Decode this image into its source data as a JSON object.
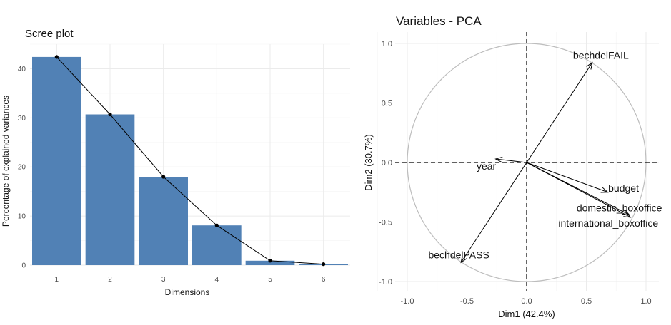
{
  "chart_data": [
    {
      "type": "bar",
      "title": "Scree plot",
      "xlabel": "Dimensions",
      "ylabel": "Percentage of explained variances",
      "categories": [
        "1",
        "2",
        "3",
        "4",
        "5",
        "6"
      ],
      "values": [
        42.4,
        30.7,
        18.0,
        8.1,
        0.9,
        0.2
      ],
      "overlay": "line-with-points",
      "ylim": [
        0,
        45
      ],
      "yticks": [
        0,
        10,
        20,
        30,
        40
      ],
      "grid": true,
      "colors": {
        "bar": "#5181b5",
        "line": "#000000"
      }
    },
    {
      "type": "scatter",
      "subtype": "pca-variable-correlation-circle",
      "title": "Variables - PCA",
      "xlabel": "Dim1 (42.4%)",
      "ylabel": "Dim2 (30.7%)",
      "xlim": [
        -1.0,
        1.0
      ],
      "ylim": [
        -1.0,
        1.0
      ],
      "xticks": [
        "-1.0",
        "-0.5",
        "0.0",
        "0.5",
        "1.0"
      ],
      "yticks": [
        "-1.0",
        "-0.5",
        "0.0",
        "0.5",
        "1.0"
      ],
      "grid": true,
      "unit_circle": true,
      "variables": [
        {
          "name": "bechdelFAIL",
          "x": 0.55,
          "y": 0.84
        },
        {
          "name": "year",
          "x": -0.26,
          "y": 0.03
        },
        {
          "name": "budget",
          "x": 0.68,
          "y": -0.25
        },
        {
          "name": "domestic_boxoffice",
          "x": 0.86,
          "y": -0.44
        },
        {
          "name": "international_boxoffice",
          "x": 0.87,
          "y": -0.46
        },
        {
          "name": "bechdelPASS",
          "x": -0.55,
          "y": -0.84
        }
      ],
      "colors": {
        "arrow": "#000000",
        "circle": "#bdbdbd",
        "refline": "#000000"
      }
    }
  ]
}
